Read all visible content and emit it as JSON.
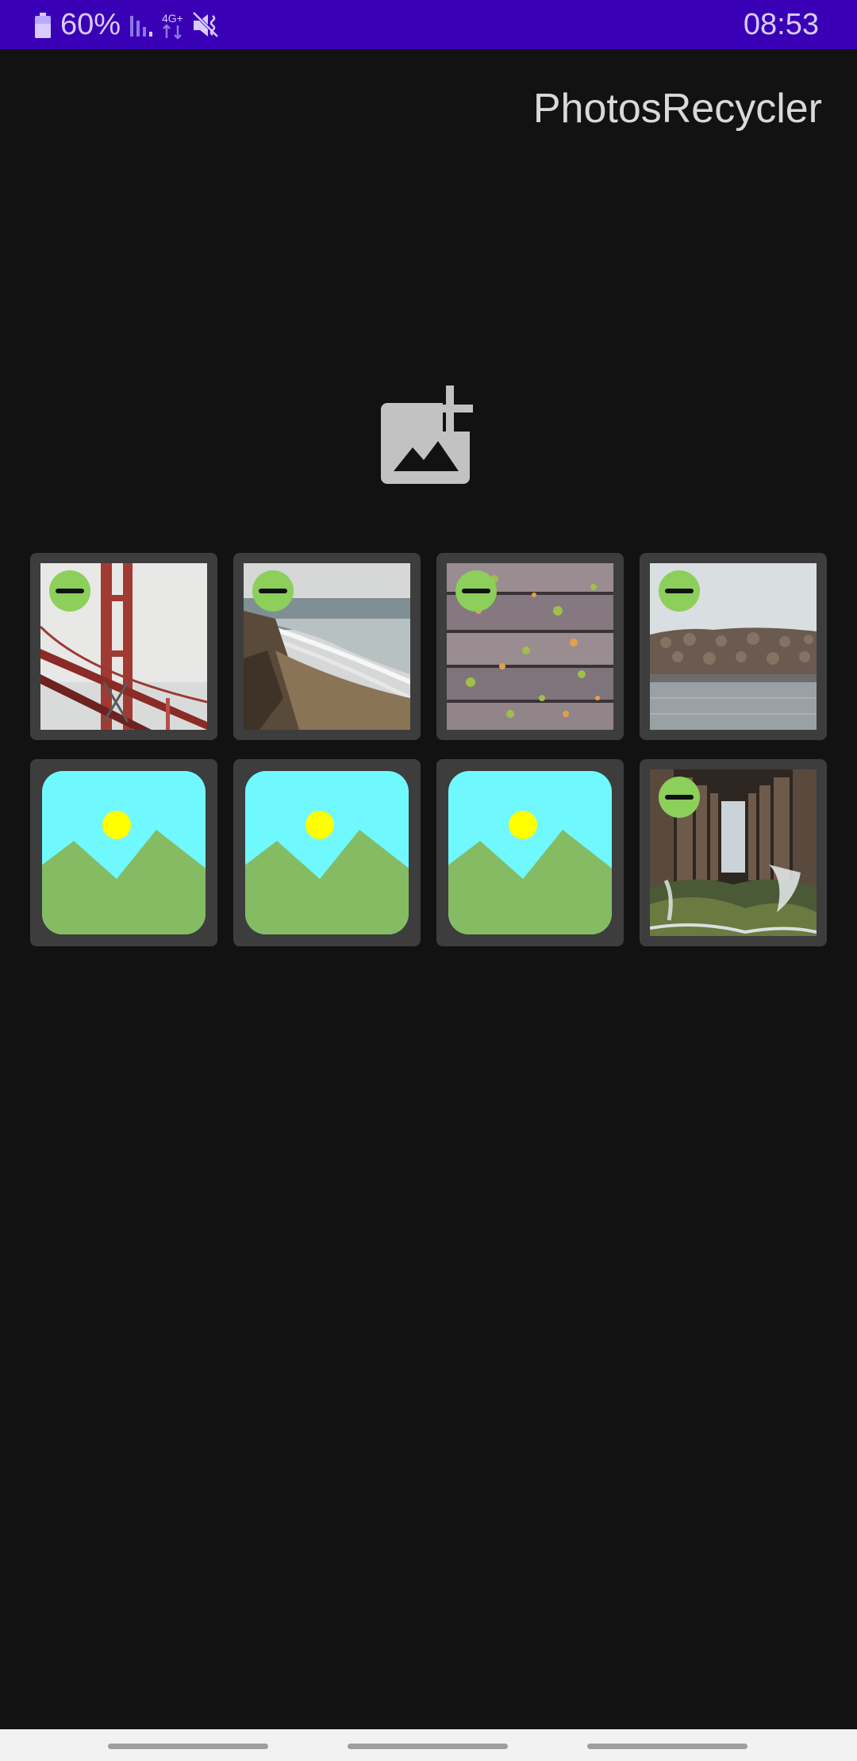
{
  "status_bar": {
    "battery_level": "60%",
    "time": "08:53",
    "network_label": "4G+",
    "icons": [
      "battery-icon",
      "signal-icon",
      "network-4g-icon",
      "mute-icon"
    ],
    "background_color": "#3a00b6"
  },
  "app": {
    "title": "PhotosRecycler",
    "add_icon": "add-photo-icon"
  },
  "grid": {
    "rows": 2,
    "columns": 4,
    "tiles": [
      {
        "content": "golden-gate-bridge-photo",
        "removable": true
      },
      {
        "content": "coastal-cliff-beach-photo",
        "removable": true
      },
      {
        "content": "wooden-deck-leaves-photo",
        "removable": true
      },
      {
        "content": "rocky-breakwater-photo",
        "removable": true
      },
      {
        "content": "image-placeholder",
        "removable": false
      },
      {
        "content": "image-placeholder",
        "removable": false
      },
      {
        "content": "image-placeholder",
        "removable": false
      },
      {
        "content": "pier-underside-photo",
        "removable": true
      }
    ]
  },
  "colors": {
    "background": "#121212",
    "tile": "#3d3d3d",
    "remove_badge": "#8ccf5a",
    "placeholder_sky": "#6ff9ff",
    "placeholder_hills": "#85bb63",
    "placeholder_sun": "#ffff00"
  }
}
